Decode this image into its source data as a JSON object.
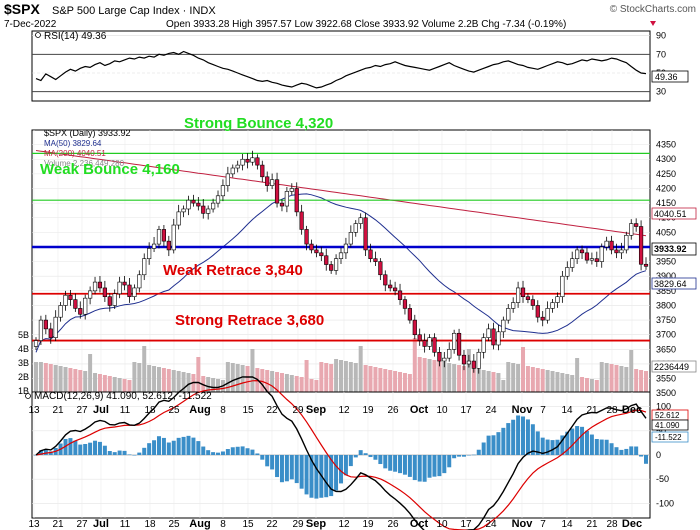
{
  "header": {
    "symbol": "$SPX",
    "name": "S&P 500 Large Cap Index",
    "exchange": "INDX",
    "date": "7-Dec-2022",
    "ohlc_line": "Open 3933.28  High 3957.57  Low 3922.68  Close 3933.92  Volume 2.2B  Chg -7.34 (-0.19%)",
    "open": 3933.28,
    "high": 3957.57,
    "low": 3922.68,
    "close": 3933.92,
    "volume": "2.2B",
    "change": "-7.34 (-0.19%)",
    "watermark": "© StockCharts.com"
  },
  "colors": {
    "up_candle": "#ffffff",
    "down_candle": "#d01040",
    "candle_outline": "#000000",
    "ma50": "#1f2f8f",
    "ma200": "#c02040",
    "green_line": "#22cc22",
    "blue_line": "#0000cc",
    "red_line": "#dd0000",
    "volume_up": "#b8b8b8",
    "volume_down": "#e8a8b0",
    "macd_line": "#000000",
    "signal_line": "#dd0000",
    "histogram": "#3a8ec8",
    "rsi_line": "#000000",
    "annotation_green": "#22dd22",
    "annotation_red": "#dd0000"
  },
  "chart_data": [
    {
      "type": "line",
      "title": "RSI(14) 49.36",
      "ylim": [
        20,
        95
      ],
      "y_ticks": [
        30,
        50,
        70,
        90
      ],
      "current_value": 49.36,
      "x": [
        0,
        1,
        2,
        3,
        4,
        5,
        6,
        7,
        8,
        9,
        10,
        11,
        12,
        13,
        14,
        15,
        16,
        17,
        18,
        19,
        20,
        21,
        22,
        23,
        24,
        25,
        26,
        27,
        28,
        29,
        30,
        31,
        32,
        33,
        34,
        35,
        36,
        37,
        38,
        39,
        40,
        41,
        42,
        43,
        44,
        45,
        46,
        47,
        48,
        49,
        50,
        51,
        52,
        53,
        54,
        55,
        56,
        57,
        58,
        59,
        60,
        61,
        62,
        63,
        64,
        65,
        66,
        67,
        68,
        69,
        70,
        71,
        72,
        73,
        74,
        75,
        76,
        77,
        78,
        79,
        80,
        81,
        82,
        83,
        84,
        85,
        86,
        87,
        88,
        89,
        90,
        91,
        92,
        93,
        94,
        95,
        96,
        97,
        98,
        99,
        100,
        101,
        102,
        103,
        104,
        105,
        106,
        107,
        108,
        109,
        110,
        111,
        112,
        113,
        114,
        115,
        116,
        117,
        118,
        119,
        120,
        121,
        122,
        123,
        124
      ],
      "values": [
        44,
        42,
        49,
        46,
        43,
        47,
        51,
        54,
        52,
        55,
        57,
        56,
        59,
        61,
        58,
        60,
        63,
        62,
        64,
        66,
        65,
        67,
        66,
        68,
        67,
        70,
        69,
        71,
        72,
        70,
        73,
        71,
        69,
        66,
        64,
        61,
        59,
        57,
        55,
        54,
        52,
        50,
        48,
        46,
        44,
        42,
        41,
        42,
        40,
        39,
        37,
        36,
        35,
        37,
        39,
        38,
        36,
        34,
        35,
        37,
        39,
        42,
        44,
        47,
        49,
        51,
        53,
        55,
        56,
        58,
        57,
        59,
        60,
        62,
        60,
        58,
        57,
        56,
        55,
        54,
        53,
        55,
        57,
        59,
        61,
        58,
        56,
        54,
        52,
        51,
        53,
        55,
        57,
        59,
        60,
        62,
        63,
        61,
        59,
        58,
        56,
        55,
        54,
        56,
        58,
        60,
        62,
        61,
        59,
        60,
        62,
        64,
        63,
        65,
        64,
        63,
        64,
        66,
        65,
        63,
        61,
        57,
        53,
        50,
        49.36
      ]
    },
    {
      "type": "candlestick",
      "title": "$SPX (Daily) 3933.92",
      "ylim": [
        3470,
        4400
      ],
      "y_ticks": [
        3500,
        3550,
        3600,
        3650,
        3700,
        3750,
        3800,
        3850,
        3900,
        3950,
        4000,
        4050,
        4100,
        4150,
        4200,
        4250,
        4300,
        4350
      ],
      "x_tick_labels": [
        "13",
        "21",
        "27",
        "Jul",
        "11",
        "18",
        "25",
        "Aug",
        "8",
        "15",
        "22",
        "29",
        "Sep",
        "12",
        "19",
        "26",
        "Oct",
        "10",
        "17",
        "24",
        "Nov",
        "7",
        "14",
        "21",
        "28",
        "Dec"
      ],
      "legend": [
        {
          "label": "$SPX (Daily) 3933.92"
        },
        {
          "label": "MA(50) 3829.64"
        },
        {
          "label": "MA(200) 4040.51"
        },
        {
          "label": "Volume 2,236,449,280"
        }
      ],
      "closes": [
        3680,
        3750,
        3720,
        3690,
        3760,
        3800,
        3835,
        3820,
        3790,
        3770,
        3825,
        3850,
        3880,
        3860,
        3830,
        3800,
        3840,
        3880,
        3870,
        3830,
        3860,
        3905,
        3960,
        3995,
        4010,
        4060,
        4020,
        3990,
        4075,
        4120,
        4130,
        4160,
        4150,
        4140,
        4115,
        4130,
        4150,
        4175,
        4210,
        4250,
        4270,
        4280,
        4300,
        4290,
        4305,
        4280,
        4240,
        4210,
        4230,
        4150,
        4140,
        4190,
        4200,
        4120,
        4060,
        4010,
        3990,
        3980,
        3970,
        3940,
        3920,
        3960,
        3980,
        4010,
        4050,
        4080,
        4100,
        3990,
        3960,
        3950,
        3905,
        3870,
        3860,
        3850,
        3820,
        3790,
        3750,
        3700,
        3680,
        3660,
        3690,
        3640,
        3610,
        3620,
        3650,
        3705,
        3630,
        3600,
        3610,
        3585,
        3640,
        3690,
        3720,
        3665,
        3710,
        3750,
        3790,
        3810,
        3860,
        3830,
        3820,
        3800,
        3760,
        3750,
        3790,
        3810,
        3830,
        3900,
        3930,
        3960,
        3990,
        3980,
        3955,
        3960,
        3950,
        4000,
        4020,
        3990,
        3980,
        3990,
        4040,
        4080,
        4070,
        3941,
        3933.92
      ],
      "overlays": {
        "ma50": {
          "label": "MA(50)",
          "current_value": 3829.64
        },
        "ma200": {
          "label": "MA(200)",
          "current_value": 4040.51
        }
      },
      "horizontal_levels": [
        {
          "label": "Strong Bounce 4,320",
          "value": 4320,
          "color": "green"
        },
        {
          "label": "Weak Bounce 4,160",
          "value": 4160,
          "color": "green"
        },
        {
          "value": 4000,
          "color": "blue"
        },
        {
          "label": "Weak Retrace 3,840",
          "value": 3840,
          "color": "red"
        },
        {
          "label": "Strong Retrace 3,680",
          "value": 3680,
          "color": "red"
        }
      ],
      "price_labels": [
        "4040.51",
        "3933.92",
        "3829.64"
      ],
      "volume_axis": [
        "1B",
        "2B",
        "3B",
        "4B",
        "5B"
      ],
      "volume_current": "2236449"
    },
    {
      "type": "line",
      "title": "MACD(12,26,9) 41.090, 52.612, -11.522",
      "ylim": [
        -130,
        130
      ],
      "y_ticks": [
        -100,
        -50,
        0,
        50,
        100
      ],
      "series": [
        {
          "name": "MACD(12,26,9)",
          "current_value": 41.09
        },
        {
          "name": "Signal",
          "current_value": 52.612
        },
        {
          "name": "Histogram",
          "current_value": -11.522
        }
      ],
      "value_labels": [
        "52.612",
        "41.090",
        "-11.522"
      ]
    }
  ],
  "x_labels_bottom": [
    "13",
    "21",
    "27",
    "Jul",
    "11",
    "18",
    "25",
    "Aug",
    "8",
    "15",
    "22",
    "29",
    "Sep",
    "12",
    "19",
    "26",
    "Oct",
    "10",
    "17",
    "24",
    "Nov",
    "7",
    "14",
    "21",
    "28",
    "Dec"
  ]
}
